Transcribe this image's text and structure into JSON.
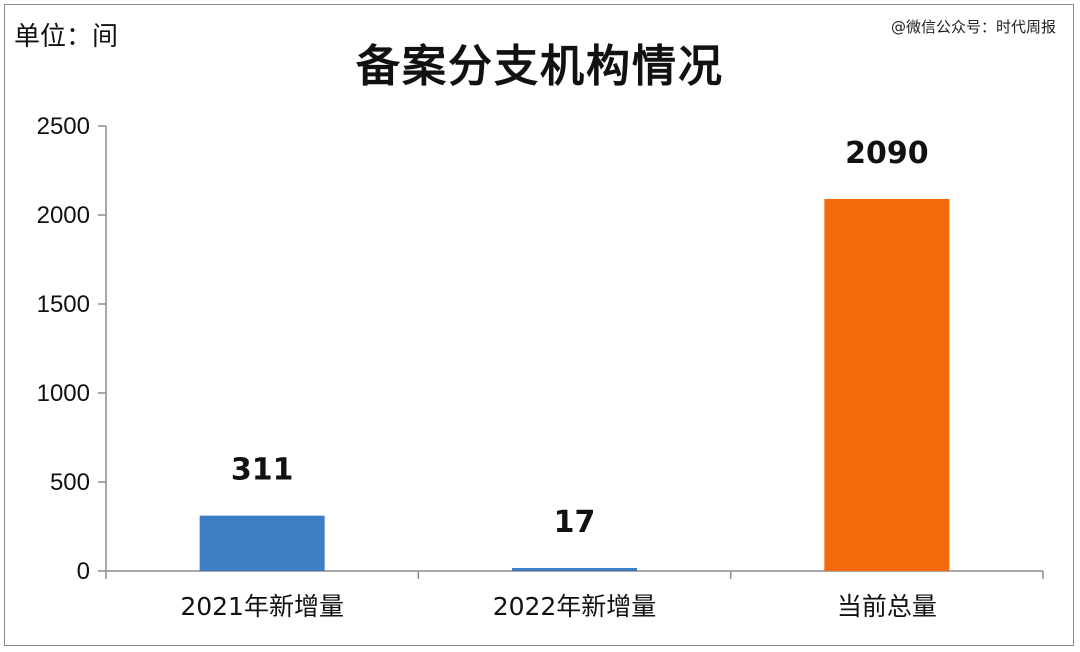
{
  "unit_label": "单位：间",
  "watermark": "@微信公众号：时代周报",
  "chart_data": {
    "type": "bar",
    "title": "备案分支机构情况",
    "categories": [
      "2021年新增量",
      "2022年新增量",
      "当前总量"
    ],
    "values": [
      311,
      17,
      2090
    ],
    "data_labels": [
      "311",
      "17",
      "2090"
    ],
    "colors": [
      "#3d7dc4",
      "#3d7dc4",
      "#f26a0c"
    ],
    "ylim": [
      0,
      2500
    ],
    "yticks": [
      0,
      500,
      1000,
      1500,
      2000,
      2500
    ],
    "ytick_labels": [
      "0",
      "500",
      "1000",
      "1500",
      "2000",
      "2500"
    ],
    "xlabel": "",
    "ylabel": "",
    "grid": false,
    "legend": "none"
  }
}
